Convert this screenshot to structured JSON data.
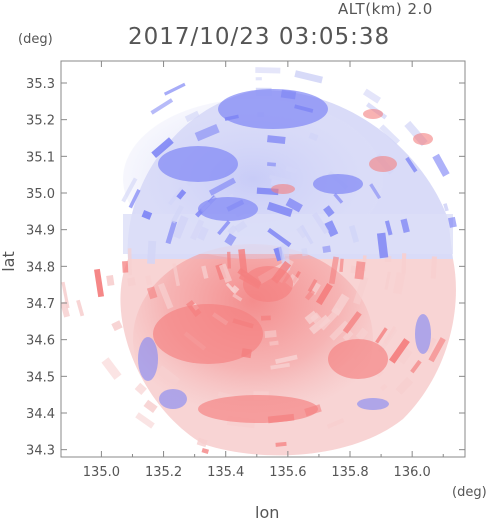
{
  "header": {
    "altitude": "ALT(km) 2.0",
    "timestamp": "2017/10/23 03:05:38"
  },
  "chart_data": {
    "type": "heatmap",
    "title": "2017/10/23 03:05:38",
    "subtitle": "ALT(km) 2.0",
    "xlabel": "lon",
    "ylabel": "lat",
    "x_unit": "(deg)",
    "y_unit": "(deg)",
    "xlim": [
      134.87,
      136.17
    ],
    "ylim": [
      34.28,
      35.36
    ],
    "x_ticks": [
      "135.0",
      "135.2",
      "135.4",
      "135.6",
      "135.8",
      "136.0"
    ],
    "y_ticks": [
      "34.3",
      "34.4",
      "34.5",
      "34.6",
      "34.7",
      "34.8",
      "34.9",
      "35.0",
      "35.1",
      "35.2",
      "35.3"
    ],
    "radar_center": {
      "lon": 135.52,
      "lat": 34.82
    },
    "colors": {
      "strong_blue": "#7f86f5",
      "light_blue": "#d2d5f7",
      "strong_red": "#f47f7f",
      "light_red": "#f7cfcf",
      "axis": "#888888",
      "text": "#555555"
    },
    "grid": false,
    "legend": "none"
  }
}
